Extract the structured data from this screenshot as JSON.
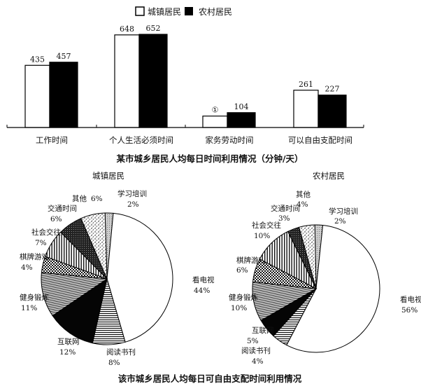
{
  "chart_data": [
    {
      "type": "bar",
      "title": "某市城乡居民人均每日时间利用情况（分钟/天）",
      "categories": [
        "工作时间",
        "个人生活必须时间",
        "家务劳动时间",
        "可以自由支配时间"
      ],
      "legend_position": "top-center",
      "grid": false,
      "series": [
        {
          "name": "城镇居民",
          "fill": "#ffffff",
          "values": [
            435,
            648,
            null,
            261
          ],
          "value_labels": [
            "435",
            "648",
            "①",
            "261"
          ]
        },
        {
          "name": "农村居民",
          "fill": "#000000",
          "values": [
            457,
            652,
            104,
            227
          ],
          "value_labels": [
            "457",
            "652",
            "104",
            "227"
          ]
        }
      ]
    },
    {
      "type": "pie",
      "title": "城镇居民",
      "slices": [
        {
          "label": "学习培训",
          "value": 2,
          "pct": "2%",
          "pattern": "light-dots"
        },
        {
          "label": "看电视",
          "value": 44,
          "pct": "44%",
          "pattern": "white"
        },
        {
          "label": "阅读书刊",
          "value": 8,
          "pct": "8%",
          "pattern": "horizontal-lines"
        },
        {
          "label": "互联网",
          "value": 12,
          "pct": "12%",
          "pattern": "black"
        },
        {
          "label": "健身锻炼",
          "value": 11,
          "pct": "11%",
          "pattern": "fine-lines"
        },
        {
          "label": "棋牌游戏",
          "value": 4,
          "pct": "4%",
          "pattern": "checker"
        },
        {
          "label": "社会交往",
          "value": 7,
          "pct": "7%",
          "pattern": "vertical-lines"
        },
        {
          "label": "交通时间",
          "value": 6,
          "pct": "6%",
          "pattern": "dark-dots"
        },
        {
          "label": "其他",
          "value": 6,
          "pct": "6%",
          "pattern": "speckle"
        }
      ]
    },
    {
      "type": "pie",
      "title": "农村居民",
      "slices": [
        {
          "label": "学习培训",
          "value": 2,
          "pct": "2%",
          "pattern": "light-dots"
        },
        {
          "label": "看电视",
          "value": 56,
          "pct": "56%",
          "pattern": "white"
        },
        {
          "label": "阅读书刊",
          "value": 4,
          "pct": "4%",
          "pattern": "horizontal-lines"
        },
        {
          "label": "互联网",
          "value": 5,
          "pct": "5%",
          "pattern": "black"
        },
        {
          "label": "健身锻炼",
          "value": 10,
          "pct": "10%",
          "pattern": "fine-lines"
        },
        {
          "label": "棋牌游戏",
          "value": 6,
          "pct": "6%",
          "pattern": "checker"
        },
        {
          "label": "社会交往",
          "value": 10,
          "pct": "10%",
          "pattern": "vertical-lines"
        },
        {
          "label": "交通时间",
          "value": 3,
          "pct": "3%",
          "pattern": "dark-dots"
        },
        {
          "label": "其他",
          "value": 4,
          "pct": "4%",
          "pattern": "speckle"
        }
      ]
    }
  ],
  "pies_caption": "该市城乡居民人均每日可自由支配时间利用情况"
}
